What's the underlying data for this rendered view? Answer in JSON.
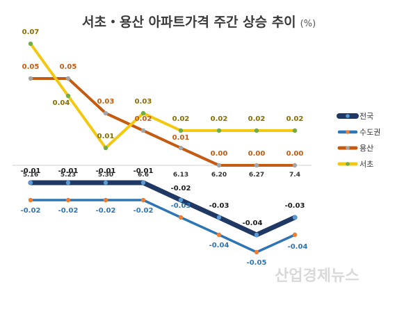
{
  "chart_data": {
    "type": "line",
    "title": "서초・용산 아파트가격 주간 상승 추이",
    "unit": "(%)",
    "categories": [
      "5.16",
      "5.23",
      "5.30",
      "6.6",
      "6.13",
      "6.20",
      "6.27",
      "7.4"
    ],
    "ylim": [
      -0.05,
      0.07
    ],
    "series": [
      {
        "name": "전국",
        "color": "#1f3864",
        "values": [
          -0.01,
          -0.01,
          -0.01,
          -0.01,
          -0.02,
          -0.03,
          -0.04,
          -0.03
        ],
        "marker_color": "#5b9bd5",
        "label_color": "#1a1a1a"
      },
      {
        "name": "수도권",
        "color": "#2e75b6",
        "values": [
          -0.02,
          -0.02,
          -0.02,
          -0.02,
          -0.03,
          -0.04,
          -0.05,
          -0.04
        ],
        "marker_color": "#ed7d31",
        "label_color": "#2e75b6"
      },
      {
        "name": "용산",
        "color": "#c55a11",
        "values": [
          0.05,
          0.05,
          0.03,
          0.02,
          0.01,
          0.0,
          0.0,
          0.0
        ],
        "marker_color": "#a5a5a5",
        "label_color": "#c55a11"
      },
      {
        "name": "서초",
        "color": "#f2c811",
        "values": [
          0.07,
          0.04,
          0.01,
          0.03,
          0.02,
          0.02,
          0.02,
          0.02
        ],
        "marker_color": "#70ad47",
        "label_color": "#8a6d00"
      }
    ],
    "legend_position": "right",
    "grid": false
  },
  "watermark": "산업경제뉴스"
}
